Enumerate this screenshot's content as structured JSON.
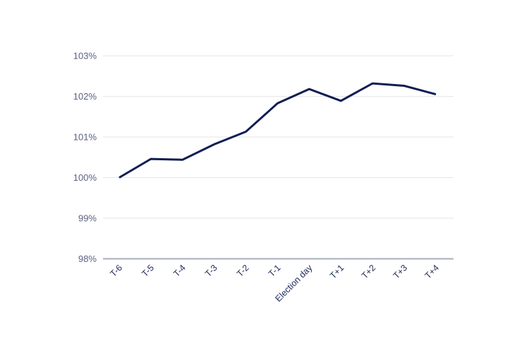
{
  "page": {
    "background_color": "#ffffff"
  },
  "chart_data": {
    "type": "line",
    "categories": [
      "T-6",
      "T-5",
      "T-4",
      "T-3",
      "T-2",
      "T-1",
      "Election day",
      "T+1",
      "T+2",
      "T+3",
      "T+4"
    ],
    "values": [
      100.0,
      100.46,
      100.44,
      100.82,
      101.13,
      101.83,
      102.18,
      101.89,
      102.32,
      102.26,
      102.05
    ],
    "ylim": [
      98,
      103
    ],
    "ytick_values": [
      98,
      99,
      100,
      101,
      102,
      103
    ],
    "ytick_labels": [
      "98%",
      "99%",
      "100%",
      "101%",
      "102%",
      "103%"
    ],
    "grid": "horizontal",
    "legend": "none",
    "colors": {
      "line": "#111d54",
      "gridline": "#e6e6e6",
      "axis_line": "#a9aebc",
      "ytick_label": "#5a6181",
      "xtick_label": "#212d5b"
    }
  }
}
